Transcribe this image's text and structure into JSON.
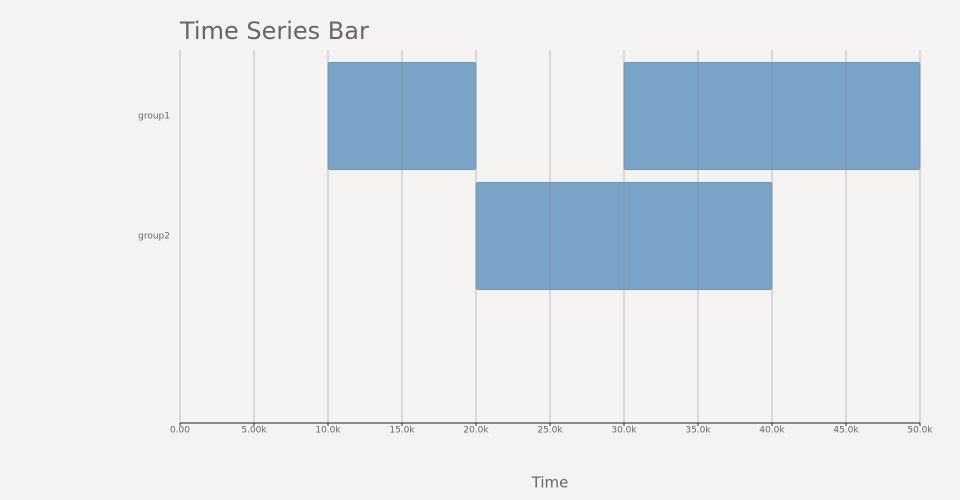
{
  "chart_data": {
    "type": "range-bar",
    "title": "Time Series Bar",
    "x_label": "Time",
    "groups": [
      {
        "name": "group1",
        "ranges": [
          [
            10000,
            20000
          ],
          [
            30000,
            50000
          ]
        ]
      },
      {
        "name": "group2",
        "ranges": [
          [
            20000,
            40000
          ]
        ]
      }
    ],
    "color": "#7aa3c8",
    "xlim": [
      0,
      50000
    ],
    "xticks": [
      {
        "value": 0,
        "label": "0.00"
      },
      {
        "value": 5000,
        "label": "5.00k"
      },
      {
        "value": 10000,
        "label": "10.0k"
      },
      {
        "value": 15000,
        "label": "15.0k"
      },
      {
        "value": 20000,
        "label": "20.0k"
      },
      {
        "value": 25000,
        "label": "25.0k"
      },
      {
        "value": 30000,
        "label": "30.0k"
      },
      {
        "value": 35000,
        "label": "35.0k"
      },
      {
        "value": 40000,
        "label": "40.0k"
      },
      {
        "value": 45000,
        "label": "45.0k"
      },
      {
        "value": 50000,
        "label": "50.0k"
      }
    ],
    "grid": true
  }
}
